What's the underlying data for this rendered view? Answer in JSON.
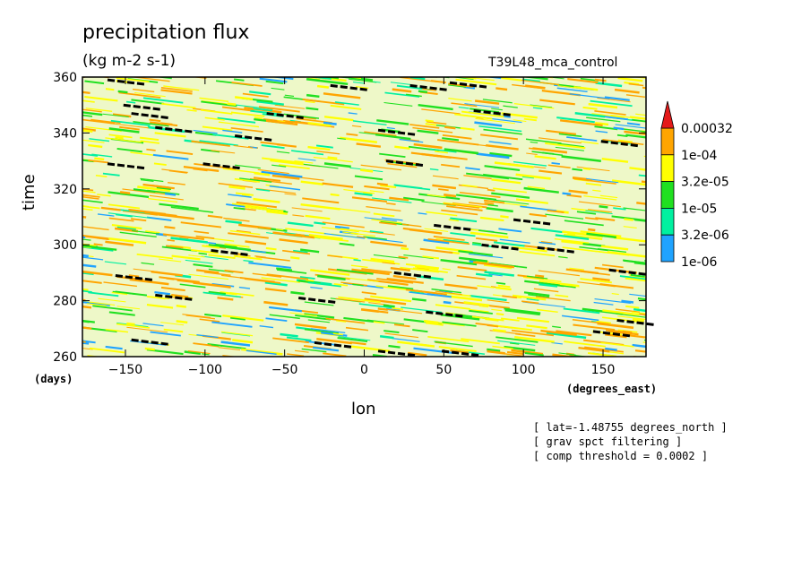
{
  "header": {
    "title": "precipitation flux",
    "units": "(kg m-2 s-1)",
    "run_id": "T39L48_mca_control"
  },
  "notes": [
    "[ lat=-1.48755 degrees_north ]",
    "[ grav spct filtering ]",
    "[ comp threshold = 0.0002 ]"
  ],
  "chart_data": {
    "type": "heatmap",
    "title": "precipitation flux",
    "xlabel": "lon",
    "xunit": "(degrees_east)",
    "ylabel": "time",
    "yunit": "(days)",
    "xlim": [
      -177,
      177
    ],
    "ylim": [
      260,
      360
    ],
    "xticks": [
      -150,
      -100,
      -50,
      0,
      50,
      100,
      150
    ],
    "yticks": [
      260,
      280,
      300,
      320,
      340,
      360
    ],
    "colorbar": {
      "levels": [
        "1e-06",
        "3.2e-06",
        "1e-05",
        "3.2e-05",
        "1e-04",
        "0.00032"
      ],
      "colors": [
        "#1fa3ff",
        "#00f0a0",
        "#20e020",
        "#ffff00",
        "#ffa500",
        "#e41a1a"
      ],
      "extend": "max"
    },
    "threshold_marks": [
      {
        "lon": -150,
        "time": 359
      },
      {
        "lon": -140,
        "time": 350
      },
      {
        "lon": -135,
        "time": 347
      },
      {
        "lon": -120,
        "time": 342
      },
      {
        "lon": -150,
        "time": 329
      },
      {
        "lon": -90,
        "time": 329
      },
      {
        "lon": -70,
        "time": 339
      },
      {
        "lon": -50,
        "time": 347
      },
      {
        "lon": -10,
        "time": 357
      },
      {
        "lon": 20,
        "time": 341
      },
      {
        "lon": 25,
        "time": 330
      },
      {
        "lon": 40,
        "time": 357
      },
      {
        "lon": 65,
        "time": 358
      },
      {
        "lon": 80,
        "time": 348
      },
      {
        "lon": 160,
        "time": 337
      },
      {
        "lon": 105,
        "time": 309
      },
      {
        "lon": 55,
        "time": 307
      },
      {
        "lon": 85,
        "time": 300
      },
      {
        "lon": 120,
        "time": 299
      },
      {
        "lon": 165,
        "time": 291
      },
      {
        "lon": 30,
        "time": 290
      },
      {
        "lon": -85,
        "time": 298
      },
      {
        "lon": -145,
        "time": 289
      },
      {
        "lon": -120,
        "time": 282
      },
      {
        "lon": -30,
        "time": 281
      },
      {
        "lon": 50,
        "time": 276
      },
      {
        "lon": 155,
        "time": 269
      },
      {
        "lon": -135,
        "time": 266
      },
      {
        "lon": -20,
        "time": 265
      },
      {
        "lon": 20,
        "time": 262
      },
      {
        "lon": 60,
        "time": 262
      },
      {
        "lon": 170,
        "time": 273
      }
    ]
  }
}
